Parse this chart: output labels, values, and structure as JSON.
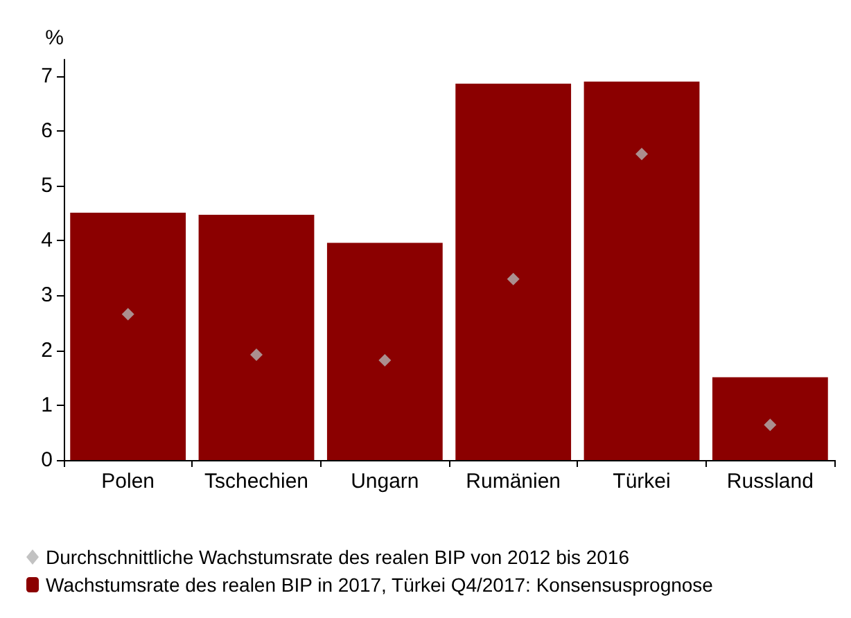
{
  "chart_data": {
    "type": "bar",
    "ylabel": "%",
    "categories": [
      "Polen",
      "Tschechien",
      "Ungarn",
      "Rumänien",
      "Türkei",
      "Russland"
    ],
    "series": [
      {
        "name": "Durchschnittliche Wachstumsrate des realen BIP von 2012 bis 2016",
        "type": "scatter",
        "marker": "diamond",
        "color": "#b3b3b3",
        "values": [
          2.66,
          1.92,
          1.82,
          3.3,
          5.58,
          0.64
        ]
      },
      {
        "name": "Wachstumsrate des realen BIP in 2017, Türkei Q4/2017: Konsensusprognose",
        "color": "#8b0000",
        "values": [
          4.51,
          4.47,
          3.96,
          6.86,
          6.9,
          1.51
        ]
      }
    ],
    "ylim": [
      0,
      7.3
    ],
    "yticks": [
      0,
      1,
      2,
      3,
      4,
      5,
      6,
      7
    ],
    "grid": false,
    "legend": "bottom"
  }
}
